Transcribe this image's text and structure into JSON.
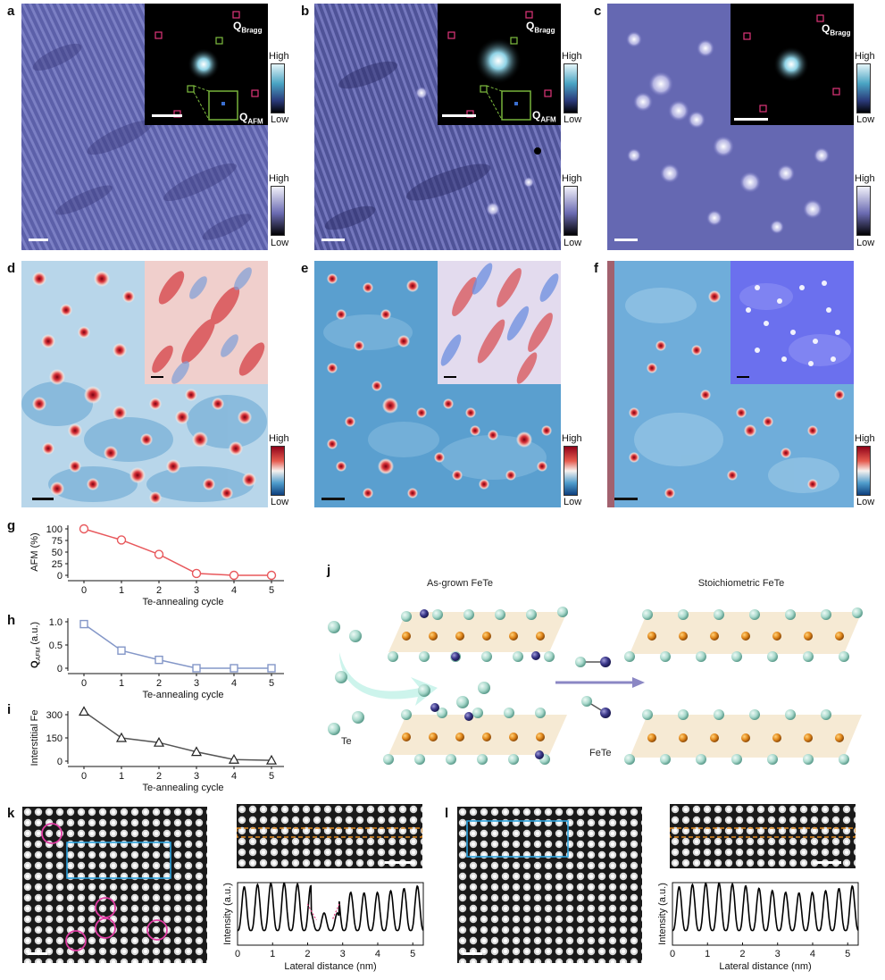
{
  "panels": {
    "a": "a",
    "b": "b",
    "c": "c",
    "d": "d",
    "e": "e",
    "f": "f",
    "g": "g",
    "h": "h",
    "i": "i",
    "j": "j",
    "k": "k",
    "l": "l"
  },
  "colorbar": {
    "high": "High",
    "low": "Low"
  },
  "fft_labels": {
    "bragg": "Q",
    "bragg_sub": "Bragg",
    "afm": "Q",
    "afm_sub": "AFM"
  },
  "colors": {
    "stm_blue": "#5b5fa8",
    "afm_red": "#e8585c",
    "q_blue": "#8497c8",
    "interstitial_gray": "#555555",
    "bragg_box": "#e0357a",
    "afm_box": "#7fbf3f",
    "fe_atom": "#e38a1e",
    "te_atom": "#a9d9cc",
    "arrow_purple": "#8b87c4"
  },
  "structure": {
    "as_grown_title": "As-grown FeTe",
    "stoich_title": "Stoichiometric FeTe",
    "te_label": "Te",
    "fete_label": "FeTe"
  },
  "chart_data": [
    {
      "id": "g",
      "type": "line",
      "x": [
        0,
        1,
        2,
        3,
        4,
        5
      ],
      "values": [
        100,
        76,
        45,
        4,
        0,
        0
      ],
      "xlabel": "Te-annealing cycle",
      "ylabel": "AFM (%)",
      "ylim": [
        0,
        100
      ],
      "yticks": [
        "100",
        "75",
        "50",
        "25",
        "0"
      ],
      "ytick_values": [
        100,
        75,
        50,
        25,
        0
      ],
      "xticks": [
        "0",
        "1",
        "2",
        "3",
        "4",
        "5"
      ],
      "marker": "circle",
      "color": "#e8585c"
    },
    {
      "id": "h",
      "type": "line",
      "x": [
        0,
        1,
        2,
        3,
        4,
        5
      ],
      "values": [
        0.95,
        0.38,
        0.18,
        0.0,
        0.0,
        0.0
      ],
      "xlabel": "Te-annealing cycle",
      "ylabel": "Q",
      "ylabel_sub": "AFM",
      "ylabel_unit": " (a.u.)",
      "ylim": [
        0,
        1.0
      ],
      "yticks": [
        "1.0",
        "0.5",
        "0"
      ],
      "ytick_values": [
        1.0,
        0.5,
        0
      ],
      "xticks": [
        "0",
        "1",
        "2",
        "3",
        "4",
        "5"
      ],
      "marker": "square",
      "color": "#8497c8"
    },
    {
      "id": "i",
      "type": "line",
      "x": [
        0,
        1,
        2,
        3,
        4,
        5
      ],
      "values": [
        320,
        150,
        120,
        60,
        10,
        5
      ],
      "xlabel": "Te-annealing cycle",
      "ylabel": "Interstitial Fe",
      "ylim": [
        0,
        300
      ],
      "yticks": [
        "300",
        "150",
        "0"
      ],
      "ytick_values": [
        300,
        150,
        0
      ],
      "xticks": [
        "0",
        "1",
        "2",
        "3",
        "4",
        "5"
      ],
      "marker": "triangle",
      "color": "#555555"
    },
    {
      "id": "k",
      "type": "line",
      "xlabel": "Lateral distance (nm)",
      "ylabel": "Intensity (a.u.)",
      "xlim": [
        0,
        5.3
      ],
      "xticks": [
        "0",
        "1",
        "2",
        "3",
        "4",
        "5"
      ],
      "xtick_values": [
        0,
        1,
        2,
        3,
        4,
        5
      ],
      "period_nm": 0.38,
      "defect_region_nm": [
        2.1,
        2.9
      ]
    },
    {
      "id": "l",
      "type": "line",
      "xlabel": "Lateral distance (nm)",
      "ylabel": "Intensity (a.u.)",
      "xlim": [
        0,
        5.3
      ],
      "xticks": [
        "0",
        "1",
        "2",
        "3",
        "4",
        "5"
      ],
      "xtick_values": [
        0,
        1,
        2,
        3,
        4,
        5
      ],
      "period_nm": 0.38
    }
  ]
}
